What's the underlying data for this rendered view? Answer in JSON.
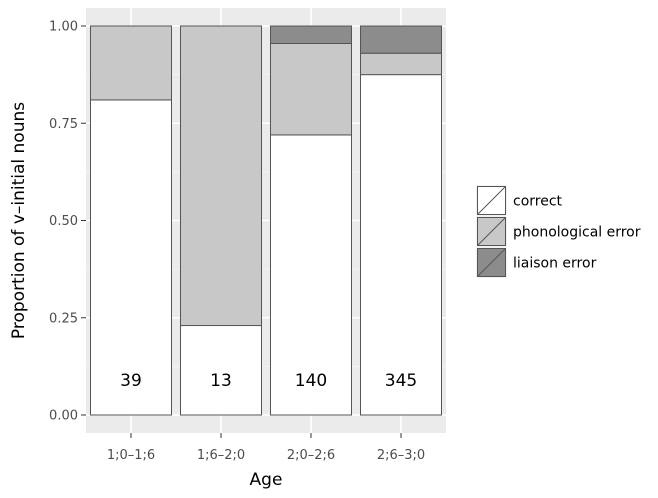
{
  "chart_data": {
    "type": "bar",
    "stacked": true,
    "normalized": true,
    "xlabel": "Age",
    "ylabel": "Proportion of v–initial nouns",
    "ylim": [
      0,
      1
    ],
    "yticks": [
      "0.00",
      "0.25",
      "0.50",
      "0.75",
      "1.00"
    ],
    "yticks_values": [
      0,
      0.25,
      0.5,
      0.75,
      1.0
    ],
    "categories": [
      "1;0–1;6",
      "1;6–2;0",
      "2;0–2;6",
      "2;6–3;0"
    ],
    "counts": [
      "39",
      "13",
      "140",
      "345"
    ],
    "series": [
      {
        "name": "correct",
        "values": [
          0.81,
          0.23,
          0.72,
          0.875
        ],
        "color": "#ffffff"
      },
      {
        "name": "phonological error",
        "values": [
          0.19,
          0.77,
          0.235,
          0.055
        ],
        "color": "#c8c8c8"
      },
      {
        "name": "liaison error",
        "values": [
          0.0,
          0.0,
          0.045,
          0.07
        ],
        "color": "#8c8c8c"
      }
    ],
    "grid": true,
    "panel_background": "#ebebeb",
    "legend_position": "right"
  }
}
